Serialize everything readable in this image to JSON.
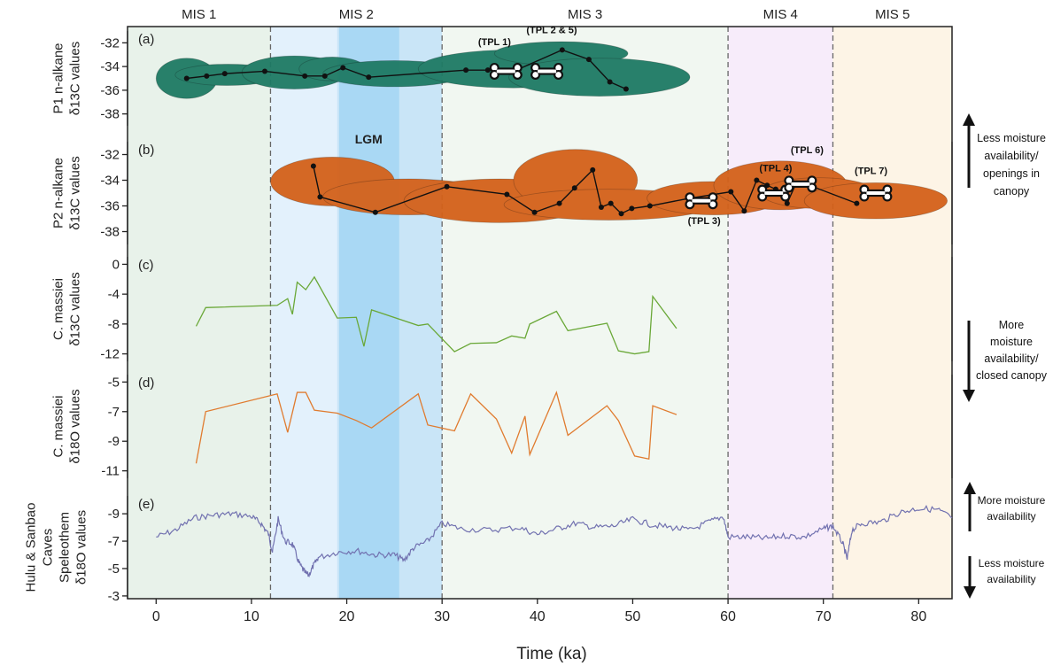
{
  "chart_data": {
    "type": "line",
    "xlabel": "Time (ka)",
    "xlim": [
      -3,
      83.5
    ],
    "xticks": [
      "0",
      "10",
      "20",
      "30",
      "40",
      "50",
      "60",
      "70",
      "80"
    ],
    "colors": {
      "mis1": "#e8f2ea",
      "mis2": "#e3f1fc",
      "lgm_outer": "#c9e5f7",
      "lgm_inner": "#a9d8f4",
      "mis3": "#f1f7f1",
      "mis4": "#f7ecfa",
      "mis5": "#fdf4e6",
      "p1": "#1e7a64",
      "p2": "#d4611a",
      "c13": "#6aa838",
      "o18": "#e07b2f",
      "speleo": "#7272b0"
    },
    "mis_bands": [
      {
        "label": "MIS 1",
        "from": -3,
        "to": 12
      },
      {
        "label": "MIS 2",
        "from": 12,
        "to": 30
      },
      {
        "label": "MIS 3",
        "from": 30,
        "to": 60
      },
      {
        "label": "MIS 4",
        "from": 60,
        "to": 71
      },
      {
        "label": "MIS 5",
        "from": 71,
        "to": 83.5
      }
    ],
    "boundaries": [
      12,
      30,
      60,
      71
    ],
    "lgm": {
      "label": "LGM",
      "outer": [
        19,
        30
      ],
      "inner": [
        19.2,
        25.5
      ]
    },
    "panels": [
      {
        "id": "a",
        "tag": "(a)",
        "ylabel_lines": [
          "P1 n-alkane",
          "δ13C values"
        ],
        "ylim": [
          -39,
          -31
        ],
        "yticks": [
          -32,
          -34,
          -36,
          -38
        ],
        "series": [
          {
            "style": "marker-line",
            "x": [
              3.2,
              5.3,
              7.2,
              11.4,
              15.6,
              17.7,
              19.6,
              22.3,
              32.5,
              34.8,
              37.8,
              42.6,
              45.4,
              47.6,
              49.3
            ],
            "y": [
              -35.0,
              -34.8,
              -34.6,
              -34.4,
              -34.8,
              -34.8,
              -34.1,
              -34.9,
              -34.3,
              -34.3,
              -34.3,
              -32.6,
              -33.4,
              -35.3,
              -35.9
            ]
          }
        ],
        "blobs": [
          {
            "x": 3.2,
            "y": -35.0,
            "rx": 3.2,
            "ry": 1.7
          },
          {
            "x": 7.5,
            "y": -34.7,
            "rx": 5.5,
            "ry": 0.9
          },
          {
            "x": 14.5,
            "y": -34.5,
            "rx": 5.5,
            "ry": 1.4
          },
          {
            "x": 18.5,
            "y": -34.2,
            "rx": 3.5,
            "ry": 1.0
          },
          {
            "x": 25.0,
            "y": -34.6,
            "rx": 7.5,
            "ry": 1.1
          },
          {
            "x": 37.5,
            "y": -34.2,
            "rx": 10.0,
            "ry": 1.6
          },
          {
            "x": 42.5,
            "y": -32.9,
            "rx": 7.0,
            "ry": 1.0
          },
          {
            "x": 46.5,
            "y": -34.9,
            "rx": 9.5,
            "ry": 1.6
          }
        ],
        "bones": [
          {
            "x": 36.7,
            "y": -34.4
          },
          {
            "x": 41.0,
            "y": -34.4
          }
        ],
        "labels": [
          {
            "text": "(TPL 1)",
            "x": 35.5,
            "y": -32.2
          },
          {
            "text": "(TPL 2 & 5)",
            "x": 41.5,
            "y": -31.2
          }
        ]
      },
      {
        "id": "b",
        "tag": "(b)",
        "ylabel_lines": [
          "P2 n-alkane",
          "δ13C values"
        ],
        "ylim": [
          -39,
          -31
        ],
        "yticks": [
          -32,
          -34,
          -36,
          -38
        ],
        "series": [
          {
            "style": "marker-line",
            "x": [
              16.5,
              17.2,
              23.0,
              30.5,
              36.8,
              39.7,
              42.3,
              43.9,
              45.8,
              46.7,
              47.7,
              48.8,
              49.9,
              51.8,
              56.0,
              60.3,
              61.7,
              63.0,
              64.1,
              65.0,
              66.2,
              67.1,
              68.9,
              73.5
            ],
            "y": [
              -32.9,
              -35.3,
              -36.5,
              -34.5,
              -35.1,
              -36.5,
              -35.8,
              -34.6,
              -33.2,
              -36.1,
              -35.8,
              -36.6,
              -36.2,
              -36.0,
              -35.4,
              -34.9,
              -36.4,
              -34.0,
              -34.4,
              -34.7,
              -35.8,
              -34.3,
              -34.5,
              -35.8
            ]
          }
        ],
        "blobs": [
          {
            "x": 18.5,
            "y": -34.1,
            "rx": 6.5,
            "ry": 1.9
          },
          {
            "x": 26.5,
            "y": -35.3,
            "rx": 9.0,
            "ry": 1.4
          },
          {
            "x": 36.0,
            "y": -35.6,
            "rx": 10.0,
            "ry": 1.7
          },
          {
            "x": 44.0,
            "y": -34.0,
            "rx": 6.5,
            "ry": 2.4
          },
          {
            "x": 47.5,
            "y": -35.9,
            "rx": 11.0,
            "ry": 1.2
          },
          {
            "x": 58.5,
            "y": -35.4,
            "rx": 7.0,
            "ry": 1.3
          },
          {
            "x": 65.5,
            "y": -34.4,
            "rx": 7.0,
            "ry": 1.9
          },
          {
            "x": 69.5,
            "y": -35.0,
            "rx": 6.0,
            "ry": 1.2
          },
          {
            "x": 75.5,
            "y": -35.6,
            "rx": 7.5,
            "ry": 1.4
          }
        ],
        "bones": [
          {
            "x": 57.2,
            "y": -35.6
          },
          {
            "x": 64.8,
            "y": -35.0
          },
          {
            "x": 67.6,
            "y": -34.3
          },
          {
            "x": 75.5,
            "y": -35.0
          }
        ],
        "labels": [
          {
            "text": "(TPL 3)",
            "x": 57.5,
            "y": -37.4
          },
          {
            "text": "(TPL 4)",
            "x": 65.0,
            "y": -33.3
          },
          {
            "text": "(TPL 6)",
            "x": 68.3,
            "y": -31.9
          },
          {
            "text": "(TPL 7)",
            "x": 75.0,
            "y": -33.5
          }
        ]
      },
      {
        "id": "c",
        "tag": "(c)",
        "ylabel_lines": [
          "C. massiei",
          "δ13C values"
        ],
        "ylim": [
          -13,
          1
        ],
        "yticks": [
          0,
          -4,
          -8,
          -12
        ],
        "series": [
          {
            "style": "line",
            "color_key": "c13",
            "x": [
              4.2,
              5.2,
              12.7,
              13.8,
              14.3,
              14.8,
              15.7,
              16.6,
              19.0,
              21.0,
              21.8,
              22.6,
              27.5,
              28.5,
              31.3,
              33.0,
              35.7,
              37.3,
              38.7,
              39.2,
              42.0,
              43.2,
              47.3,
              48.5,
              50.2,
              51.7,
              52.1,
              54.6
            ],
            "y": [
              -8.3,
              -5.8,
              -5.5,
              -4.6,
              -6.7,
              -2.4,
              -3.4,
              -1.7,
              -7.2,
              -7.1,
              -11.0,
              -6.1,
              -8.2,
              -8.0,
              -11.7,
              -10.6,
              -10.5,
              -9.6,
              -9.9,
              -8.0,
              -6.3,
              -8.9,
              -7.9,
              -11.6,
              -12.0,
              -11.7,
              -4.3,
              -8.6
            ]
          }
        ]
      },
      {
        "id": "d",
        "tag": "(d)",
        "ylabel_lines": [
          "C. massiei",
          "δ18O values"
        ],
        "ylim": [
          -11.5,
          -4.5
        ],
        "yticks": [
          -5,
          -7,
          -9,
          -11
        ],
        "series": [
          {
            "style": "line",
            "color_key": "o18",
            "x": [
              4.2,
              5.2,
              12.7,
              13.8,
              14.8,
              15.7,
              16.6,
              19.0,
              21.0,
              22.6,
              27.5,
              28.5,
              31.3,
              33.0,
              35.7,
              37.3,
              38.7,
              39.2,
              42.0,
              43.2,
              47.3,
              48.5,
              50.2,
              51.7,
              52.1,
              54.6
            ],
            "y": [
              -10.5,
              -7.0,
              -5.8,
              -8.4,
              -5.7,
              -5.7,
              -6.9,
              -7.1,
              -7.6,
              -8.1,
              -5.8,
              -7.9,
              -8.3,
              -5.8,
              -7.5,
              -9.8,
              -7.3,
              -9.9,
              -5.7,
              -8.6,
              -6.6,
              -7.6,
              -10.0,
              -10.2,
              -6.6,
              -7.2
            ]
          }
        ]
      },
      {
        "id": "e",
        "tag": "(e)",
        "ylabel_lines": [
          "Hulu & Sanbao",
          "Caves",
          "Speleothem",
          "δ18O values"
        ],
        "ylim": [
          -2.8,
          -10.3
        ],
        "yticks": [
          -9,
          -7,
          -5,
          -3
        ],
        "series": [
          {
            "style": "noisy-line",
            "color_key": "speleo",
            "x": [
              0,
              2,
              4,
              6,
              8,
              10,
              11,
              11.8,
              12.2,
              12.8,
              13.5,
              14.3,
              15,
              15.5,
              16,
              16.5,
              17,
              19,
              21,
              23,
              25,
              26,
              27,
              28.5,
              30,
              32,
              35,
              38,
              40,
              42,
              44,
              46,
              48,
              50,
              52,
              54,
              56,
              58,
              59.5,
              60,
              62,
              64,
              66,
              68,
              70,
              71,
              72,
              72.5,
              73,
              74,
              76,
              78,
              80,
              82,
              83.5
            ],
            "y": [
              -7.3,
              -7.8,
              -8.7,
              -8.9,
              -9.0,
              -8.8,
              -8.3,
              -7.5,
              -6.2,
              -8.6,
              -7.0,
              -6.8,
              -5.4,
              -4.8,
              -4.5,
              -5.2,
              -5.8,
              -6.2,
              -6.3,
              -6.0,
              -6.0,
              -5.6,
              -6.5,
              -7.0,
              -8.3,
              -7.9,
              -7.8,
              -8.0,
              -7.5,
              -7.9,
              -8.3,
              -8.0,
              -8.1,
              -8.6,
              -8.2,
              -8.0,
              -7.8,
              -8.4,
              -8.8,
              -7.3,
              -7.3,
              -7.2,
              -7.4,
              -7.3,
              -7.9,
              -8.1,
              -6.9,
              -5.7,
              -7.8,
              -8.3,
              -8.4,
              -9.1,
              -9.4,
              -9.3,
              -8.7
            ]
          }
        ]
      }
    ],
    "right_annotations": [
      {
        "id": "less-moisture-canopy",
        "lines": [
          "Less moisture",
          "availability/",
          "openings in",
          "canopy"
        ],
        "arrow": "up"
      },
      {
        "id": "more-moisture-canopy",
        "lines": [
          "More",
          "moisture",
          "availability/",
          "closed canopy"
        ],
        "arrow": "down"
      },
      {
        "id": "speleo-more",
        "lines": [
          "More moisture",
          "availability"
        ],
        "arrow": "up"
      },
      {
        "id": "speleo-less",
        "lines": [
          "Less moisture",
          "availability"
        ],
        "arrow": "down"
      }
    ]
  }
}
